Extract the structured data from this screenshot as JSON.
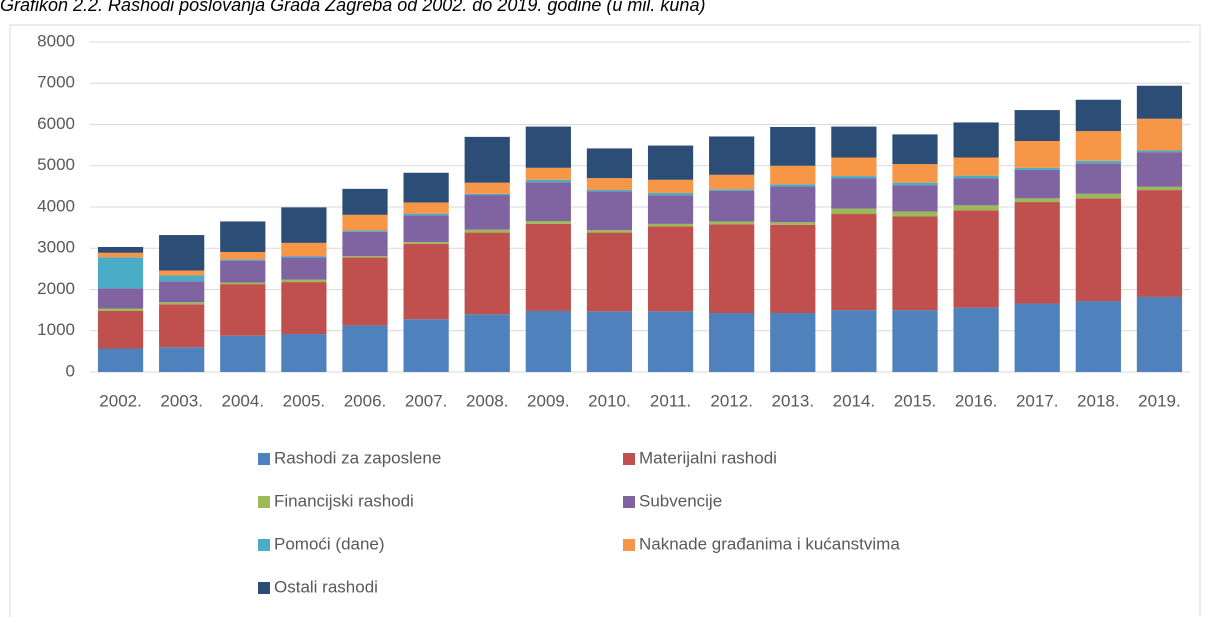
{
  "chart_data": {
    "type": "stacked_bar",
    "title": "Grafikon 2.2. Rashodi poslovanja Grada Zagreba od 2002. do 2019. godine (u mil. kuna)",
    "categories": [
      "2002.",
      "2003.",
      "2004.",
      "2005.",
      "2006.",
      "2007.",
      "2008.",
      "2009.",
      "2010.",
      "2011.",
      "2012.",
      "2013.",
      "2014.",
      "2015.",
      "2016.",
      "2017.",
      "2018.",
      "2019."
    ],
    "series": [
      {
        "name": "Rashodi za zaposlene",
        "color": "#4f81bd",
        "values": [
          570,
          600,
          880,
          920,
          1130,
          1280,
          1400,
          1480,
          1470,
          1470,
          1430,
          1430,
          1500,
          1500,
          1560,
          1660,
          1720,
          1820
        ]
      },
      {
        "name": "Materijalni rashodi",
        "color": "#c0504d",
        "values": [
          910,
          1040,
          1250,
          1260,
          1650,
          1830,
          1980,
          2110,
          1910,
          2060,
          2150,
          2140,
          2330,
          2270,
          2360,
          2460,
          2490,
          2590
        ]
      },
      {
        "name": "Financijski rashodi",
        "color": "#9bbb59",
        "values": [
          60,
          50,
          40,
          60,
          30,
          40,
          70,
          70,
          60,
          60,
          70,
          60,
          130,
          120,
          120,
          90,
          110,
          80
        ]
      },
      {
        "name": "Subvencije",
        "color": "#8064a2",
        "values": [
          490,
          510,
          530,
          540,
          590,
          650,
          840,
          940,
          940,
          690,
          740,
          870,
          740,
          640,
          660,
          690,
          740,
          840
        ]
      },
      {
        "name": "Pomoći (dane)",
        "color": "#4bacc6",
        "values": [
          750,
          140,
          30,
          30,
          30,
          40,
          30,
          60,
          40,
          60,
          40,
          50,
          50,
          60,
          60,
          50,
          60,
          40
        ]
      },
      {
        "name": "Naknade građanima i kućanstvima",
        "color": "#f79646",
        "values": [
          110,
          120,
          180,
          320,
          380,
          270,
          270,
          290,
          280,
          320,
          350,
          450,
          450,
          450,
          440,
          650,
          720,
          770
        ]
      },
      {
        "name": "Ostali rashodi",
        "color": "#2c4d75",
        "values": [
          140,
          860,
          740,
          860,
          630,
          720,
          1110,
          1000,
          720,
          830,
          930,
          940,
          750,
          720,
          850,
          750,
          760,
          800
        ]
      }
    ],
    "ylim": [
      0,
      8000
    ],
    "yticks": [
      0,
      1000,
      2000,
      3000,
      4000,
      5000,
      6000,
      7000,
      8000
    ],
    "grid": true,
    "legend": "bottom"
  }
}
